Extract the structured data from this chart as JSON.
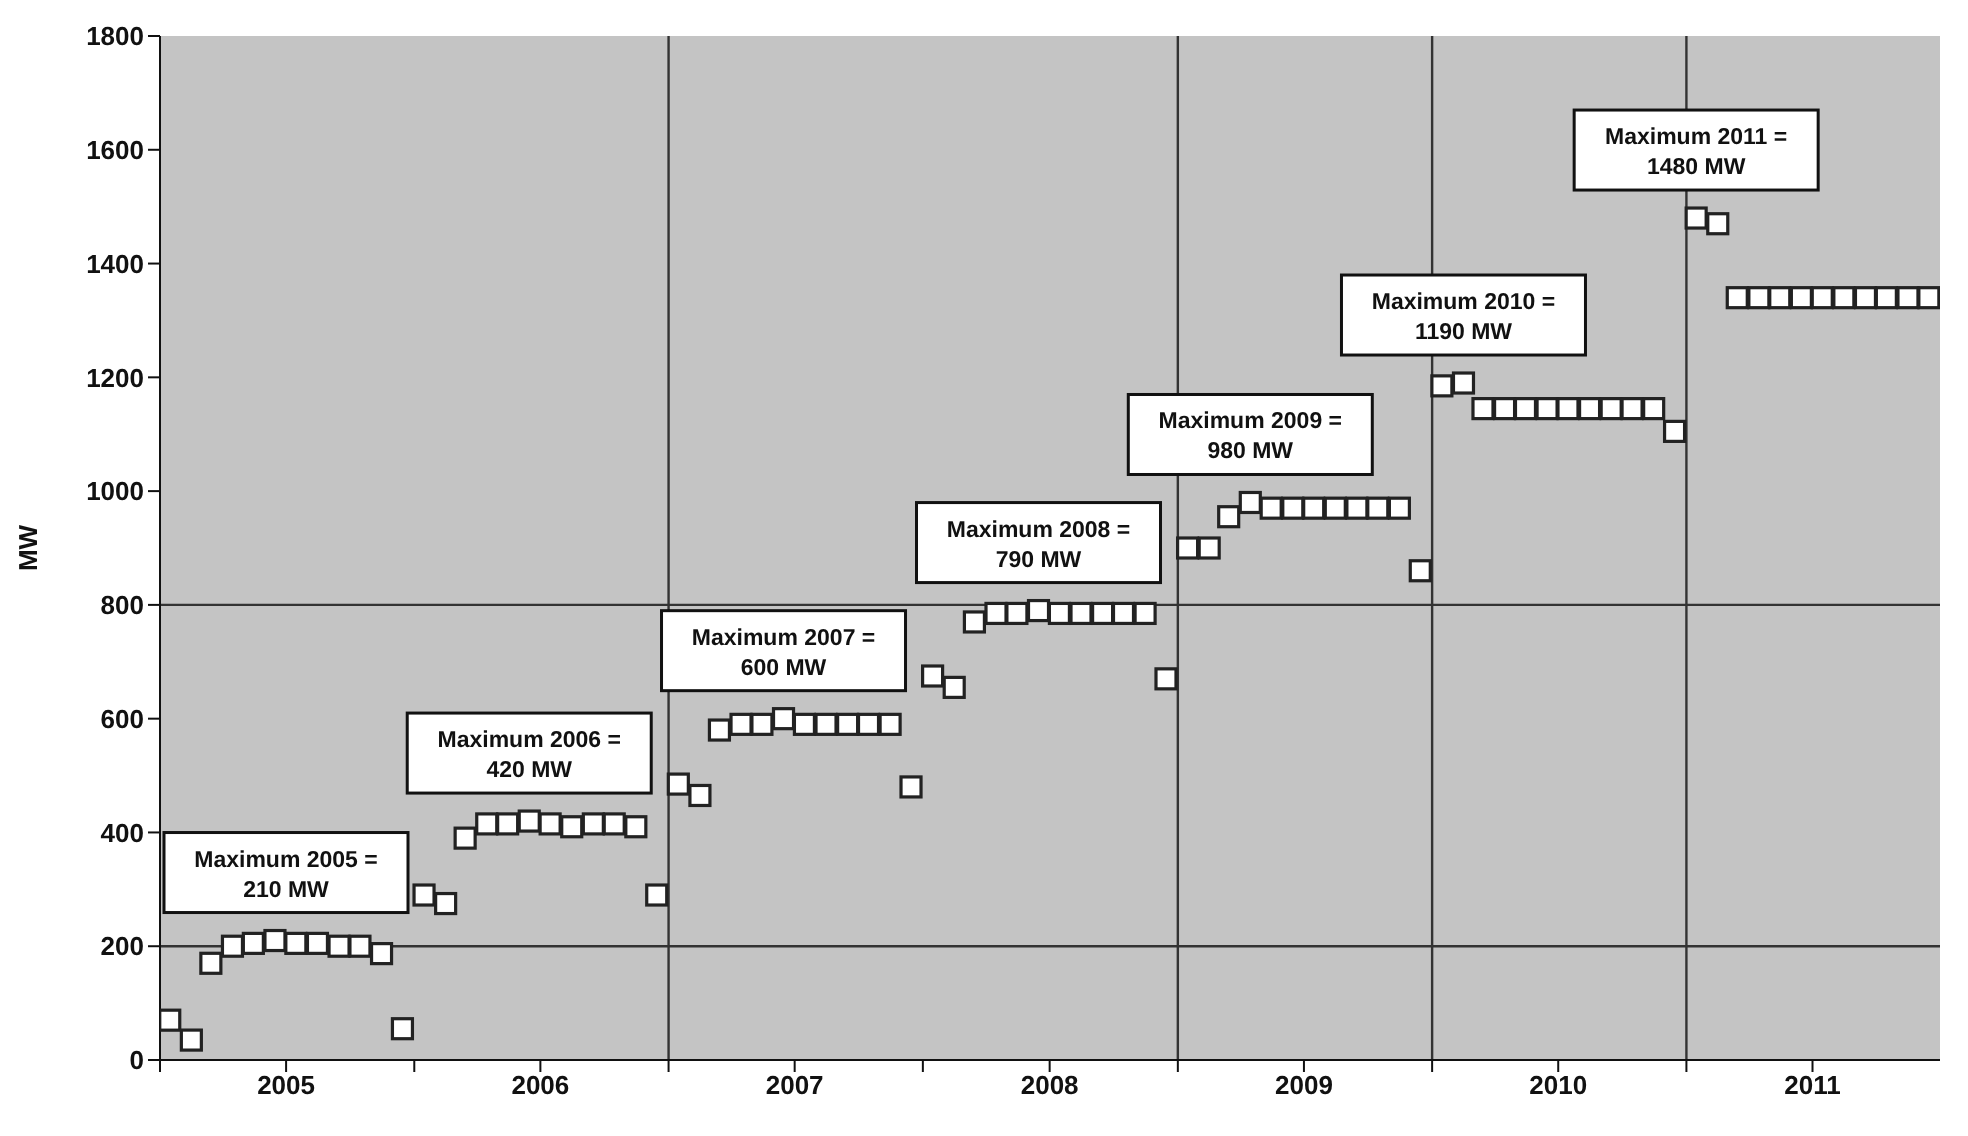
{
  "chart_data": {
    "type": "scatter",
    "ylabel": "MW",
    "ylim": [
      0,
      1800
    ],
    "yticks": [
      0,
      200,
      400,
      600,
      800,
      1000,
      1200,
      1400,
      1600,
      1800
    ],
    "xlim": [
      "2005-01-01",
      "2011-12-31"
    ],
    "xticks": [
      {
        "value": "2005-01-01",
        "label": null
      },
      {
        "value": "2005-07-01",
        "label": "2005"
      },
      {
        "value": "2006-01-01",
        "label": null
      },
      {
        "value": "2006-07-01",
        "label": "2006"
      },
      {
        "value": "2007-01-01",
        "label": null
      },
      {
        "value": "2007-07-01",
        "label": "2007"
      },
      {
        "value": "2008-01-01",
        "label": null
      },
      {
        "value": "2008-07-01",
        "label": "2008"
      },
      {
        "value": "2009-01-01",
        "label": null
      },
      {
        "value": "2009-07-01",
        "label": "2009"
      },
      {
        "value": "2010-01-01",
        "label": null
      },
      {
        "value": "2010-07-01",
        "label": "2010"
      },
      {
        "value": "2011-01-01",
        "label": null
      },
      {
        "value": "2011-07-01",
        "label": "2011"
      }
    ],
    "x": [
      "2005-01-15",
      "2005-02-15",
      "2005-03-15",
      "2005-04-15",
      "2005-05-15",
      "2005-06-15",
      "2005-07-15",
      "2005-08-15",
      "2005-09-15",
      "2005-10-15",
      "2005-11-15",
      "2005-12-15",
      "2006-01-15",
      "2006-02-15",
      "2006-03-15",
      "2006-04-15",
      "2006-05-15",
      "2006-06-15",
      "2006-07-15",
      "2006-08-15",
      "2006-09-15",
      "2006-10-15",
      "2006-11-15",
      "2006-12-15",
      "2007-01-15",
      "2007-02-15",
      "2007-03-15",
      "2007-04-15",
      "2007-05-15",
      "2007-06-15",
      "2007-07-15",
      "2007-08-15",
      "2007-09-15",
      "2007-10-15",
      "2007-11-15",
      "2007-12-15",
      "2008-01-15",
      "2008-02-15",
      "2008-03-15",
      "2008-04-15",
      "2008-05-15",
      "2008-06-15",
      "2008-07-15",
      "2008-08-15",
      "2008-09-15",
      "2008-10-15",
      "2008-11-15",
      "2008-12-15",
      "2009-01-15",
      "2009-02-15",
      "2009-03-15",
      "2009-04-15",
      "2009-05-15",
      "2009-06-15",
      "2009-07-15",
      "2009-08-15",
      "2009-09-15",
      "2009-10-15",
      "2009-11-15",
      "2009-12-15",
      "2010-01-15",
      "2010-02-15",
      "2010-03-15",
      "2010-04-15",
      "2010-05-15",
      "2010-06-15",
      "2010-07-15",
      "2010-08-15",
      "2010-09-15",
      "2010-10-15",
      "2010-11-15",
      "2010-12-15",
      "2011-01-15",
      "2011-02-15",
      "2011-03-15",
      "2011-04-15",
      "2011-05-15",
      "2011-06-15",
      "2011-07-15",
      "2011-08-15",
      "2011-09-15",
      "2011-10-15",
      "2011-11-15",
      "2011-12-15"
    ],
    "series": [
      {
        "color": "#222222",
        "values": [
          70,
          35,
          170,
          200,
          205,
          210,
          205,
          205,
          200,
          200,
          187,
          55,
          290,
          275,
          390,
          415,
          415,
          420,
          415,
          410,
          415,
          415,
          410,
          290,
          485,
          465,
          580,
          590,
          590,
          600,
          590,
          590,
          590,
          590,
          590,
          480,
          675,
          655,
          770,
          785,
          785,
          790,
          785,
          785,
          785,
          785,
          785,
          670,
          900,
          900,
          955,
          980,
          970,
          970,
          970,
          970,
          970,
          970,
          970,
          860,
          1185,
          1190,
          1145,
          1145,
          1145,
          1145,
          1145,
          1145,
          1145,
          1145,
          1145,
          1105,
          1480,
          1470,
          1340,
          1340,
          1340,
          1340,
          1340,
          1340,
          1340,
          1340,
          1340,
          1340
        ]
      }
    ],
    "marker": "square",
    "ref_lines": [
      {
        "axis": "y",
        "value": 200
      },
      {
        "axis": "y",
        "value": 800
      },
      {
        "axis": "x",
        "value": "2007-01-01"
      },
      {
        "axis": "x",
        "value": "2009-01-01"
      },
      {
        "axis": "x",
        "value": "2010-01-01"
      },
      {
        "axis": "x",
        "value": "2011-01-01"
      }
    ],
    "annotations": [
      {
        "text": "Maximum 2005 =\n210 MW",
        "x": "2005-06-15",
        "y": 210
      },
      {
        "text": "Maximum 2006 =\n420 MW",
        "x": "2006-06-15",
        "y": 420
      },
      {
        "text": "Maximum 2007 =\n600 MW",
        "x": "2007-06-15",
        "y": 600
      },
      {
        "text": "Maximum 2008 =\n790 MW",
        "x": "2008-06-15",
        "y": 790
      },
      {
        "text": "Maximum 2009 =\n980 MW",
        "x": "2009-04-15",
        "y": 980
      },
      {
        "text": "Maximum 2010 =\n1190 MW",
        "x": "2010-02-15",
        "y": 1190
      },
      {
        "text": "Maximum 2011 =\n1480 MW",
        "x": "2011-01-15",
        "y": 1480
      }
    ]
  }
}
